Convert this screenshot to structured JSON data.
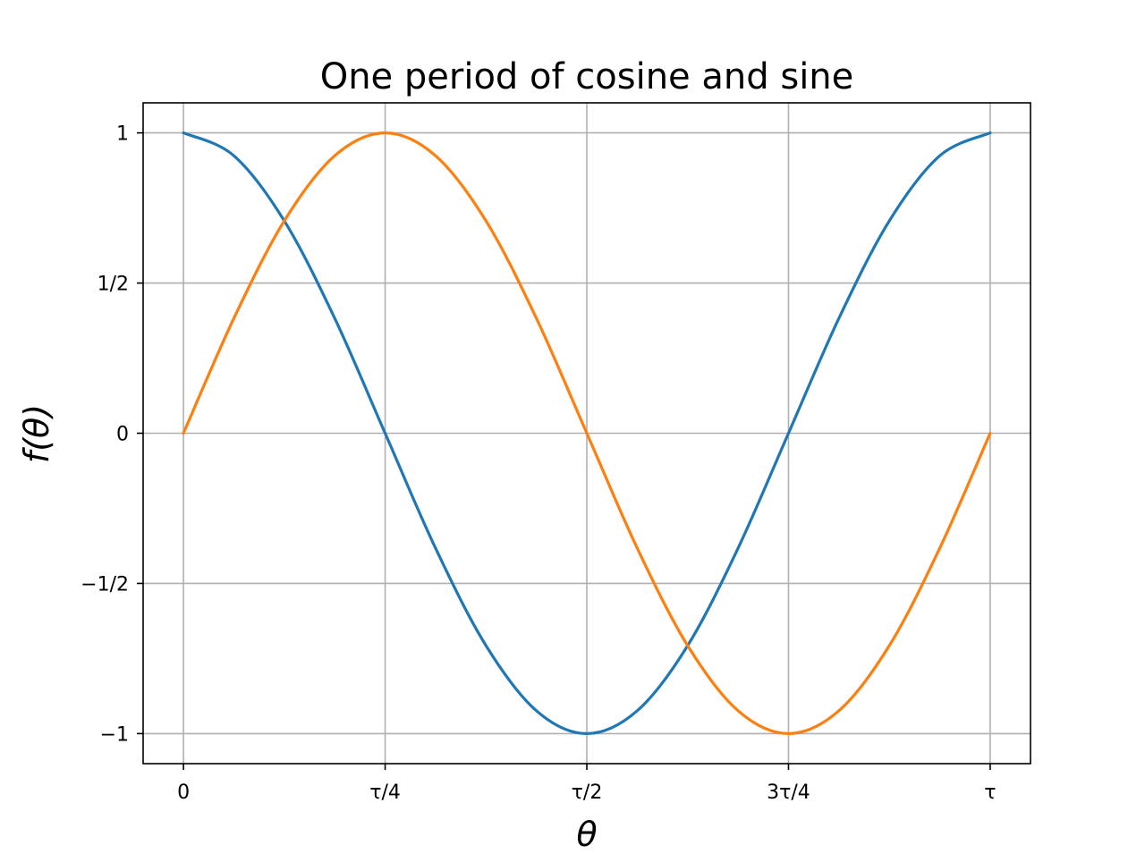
{
  "chart_data": {
    "type": "line",
    "title": "One period of cosine and sine",
    "xlabel": "θ",
    "ylabel": "f(θ)",
    "xlim": [
      -0.3142,
      6.5973
    ],
    "ylim": [
      -1.1,
      1.1
    ],
    "x_ticks": [
      {
        "value": 0,
        "label": "0"
      },
      {
        "value": 1.5708,
        "label": "τ/4"
      },
      {
        "value": 3.1416,
        "label": "τ/2"
      },
      {
        "value": 4.7124,
        "label": "3τ/4"
      },
      {
        "value": 6.2832,
        "label": "τ"
      }
    ],
    "y_ticks": [
      {
        "value": -1,
        "label": "−1"
      },
      {
        "value": -0.5,
        "label": "−1/2"
      },
      {
        "value": 0,
        "label": "0"
      },
      {
        "value": 0.5,
        "label": "1/2"
      },
      {
        "value": 1,
        "label": "1"
      }
    ],
    "grid": true,
    "legend": false,
    "x": [
      0,
      0.3927,
      0.7854,
      1.1781,
      1.5708,
      1.9635,
      2.3562,
      2.7489,
      3.1416,
      3.5343,
      3.927,
      4.3197,
      4.7124,
      5.1051,
      5.4978,
      5.8905,
      6.2832
    ],
    "series": [
      {
        "color": "#1f77b4",
        "values": [
          1,
          0.9239,
          0.7071,
          0.3827,
          0,
          -0.3827,
          -0.7071,
          -0.9239,
          -1,
          -0.9239,
          -0.7071,
          -0.3827,
          0,
          0.3827,
          0.7071,
          0.9239,
          1
        ]
      },
      {
        "color": "#ff7f0e",
        "values": [
          0,
          0.3827,
          0.7071,
          0.9239,
          1,
          0.9239,
          0.7071,
          0.3827,
          0,
          -0.3827,
          -0.7071,
          -0.9239,
          -1,
          -0.9239,
          -0.7071,
          -0.3827,
          0
        ]
      }
    ]
  }
}
